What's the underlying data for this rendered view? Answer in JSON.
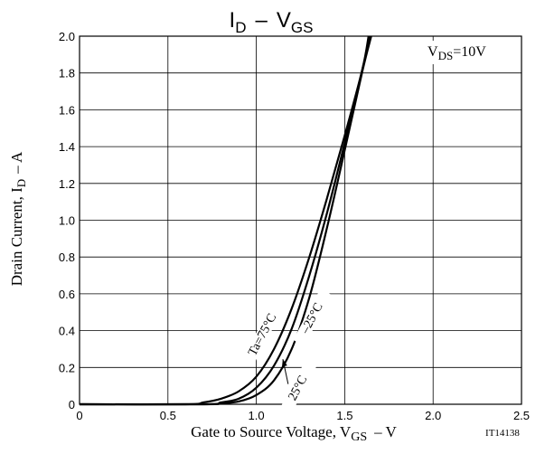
{
  "chart_data": {
    "type": "line",
    "title": {
      "main": "I",
      "sub1": "D",
      "sep": "–",
      "v": "V",
      "sub2": "GS"
    },
    "xlabel": {
      "prefix": "Gate to Source Voltage, V",
      "sub": "GS",
      "suffix": "– V"
    },
    "ylabel": {
      "prefix": "Drain Current, I",
      "sub": "D",
      "suffix": "– A"
    },
    "condition": {
      "v": "V",
      "sub": "DS",
      "rest": "=10V"
    },
    "figure_id": "IT14138",
    "xlim": [
      0,
      2.5
    ],
    "ylim": [
      0,
      2.0
    ],
    "x_ticks": [
      0,
      0.5,
      1.0,
      1.5,
      2.0,
      2.5
    ],
    "x_tick_labels": [
      "0",
      "0.5",
      "1.0",
      "1.5",
      "2.0",
      "2.5"
    ],
    "y_ticks": [
      0,
      0.2,
      0.4,
      0.6,
      0.8,
      1.0,
      1.2,
      1.4,
      1.6,
      1.8,
      2.0
    ],
    "y_tick_labels": [
      "0",
      "0.2",
      "0.4",
      "0.6",
      "0.8",
      "1.0",
      "1.2",
      "1.4",
      "1.6",
      "1.8",
      "2.0"
    ],
    "grid": true,
    "series": [
      {
        "name": "Ta=75°C",
        "points": [
          [
            0,
            0
          ],
          [
            0.6,
            0
          ],
          [
            0.7,
            0.01
          ],
          [
            0.8,
            0.03
          ],
          [
            0.9,
            0.07
          ],
          [
            1.0,
            0.15
          ],
          [
            1.1,
            0.3
          ],
          [
            1.2,
            0.52
          ],
          [
            1.3,
            0.8
          ],
          [
            1.4,
            1.12
          ],
          [
            1.5,
            1.46
          ],
          [
            1.6,
            1.82
          ],
          [
            1.635,
            2.0
          ]
        ]
      },
      {
        "name": "25°C",
        "points": [
          [
            0,
            0
          ],
          [
            0.7,
            0
          ],
          [
            0.8,
            0.01
          ],
          [
            0.9,
            0.03
          ],
          [
            1.0,
            0.09
          ],
          [
            1.1,
            0.21
          ],
          [
            1.2,
            0.41
          ],
          [
            1.3,
            0.7
          ],
          [
            1.4,
            1.04
          ],
          [
            1.5,
            1.42
          ],
          [
            1.6,
            1.82
          ],
          [
            1.645,
            2.0
          ]
        ]
      },
      {
        "name": "–25°C",
        "points": [
          [
            0,
            0
          ],
          [
            0.7,
            0
          ],
          [
            0.8,
            0.005
          ],
          [
            0.9,
            0.015
          ],
          [
            1.0,
            0.05
          ],
          [
            1.1,
            0.13
          ],
          [
            1.2,
            0.3
          ],
          [
            1.3,
            0.58
          ],
          [
            1.4,
            0.96
          ],
          [
            1.5,
            1.38
          ],
          [
            1.6,
            1.81
          ],
          [
            1.65,
            2.0
          ]
        ]
      }
    ],
    "annotations": [
      "Ta=75°C",
      "–25°C",
      "25°C"
    ]
  }
}
